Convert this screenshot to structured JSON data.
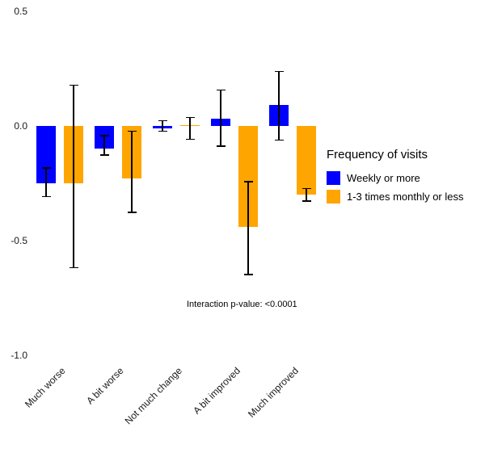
{
  "chart_data": {
    "type": "bar",
    "title": "",
    "categories": [
      "Much worse",
      "A bit worse",
      "Not much change",
      "A bit improved",
      "Much improved"
    ],
    "series": [
      {
        "name": "Weekly or more",
        "color": "#0000FF",
        "values": [
          -0.25,
          -0.1,
          -0.01,
          0.03,
          0.09
        ],
        "error_high": [
          -0.18,
          -0.04,
          0.025,
          0.16,
          0.24
        ],
        "error_low": [
          -0.31,
          -0.13,
          -0.025,
          -0.09,
          -0.065
        ]
      },
      {
        "name": "1-3 times monthly or less",
        "color": "#FFA500",
        "values": [
          -0.25,
          -0.23,
          0.005,
          -0.44,
          -0.3
        ],
        "error_high": [
          0.18,
          -0.02,
          0.04,
          -0.24,
          -0.27
        ],
        "error_low": [
          -0.62,
          -0.38,
          -0.06,
          -0.65,
          -0.33
        ]
      }
    ],
    "ylim": [
      -1.0,
      0.5
    ],
    "yticks": [
      0.5,
      0.0,
      -0.5,
      -1.0
    ],
    "grid": false,
    "legend_position": "right",
    "legend_title": "Frequency of visits",
    "annotation": "Interaction p-value: <0.0001",
    "xlabel": "",
    "ylabel": ""
  }
}
